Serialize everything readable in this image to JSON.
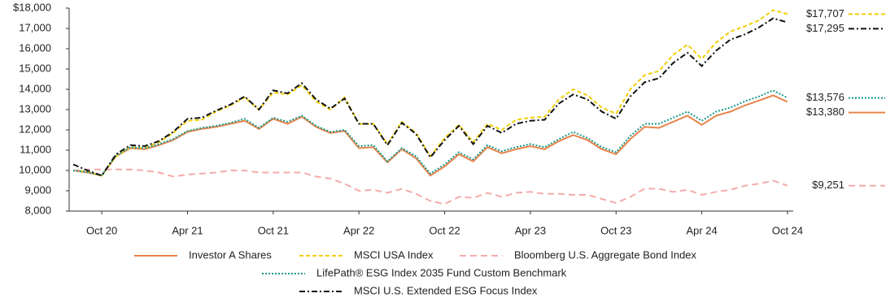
{
  "chart_data": {
    "type": "line",
    "categories": [
      null,
      null,
      "Oct 20",
      null,
      null,
      null,
      null,
      null,
      "Apr 21",
      null,
      null,
      null,
      null,
      null,
      "Oct 21",
      null,
      null,
      null,
      null,
      null,
      "Apr 22",
      null,
      null,
      null,
      null,
      null,
      "Oct 22",
      null,
      null,
      null,
      null,
      null,
      "Apr 23",
      null,
      null,
      null,
      null,
      null,
      "Oct 23",
      null,
      null,
      null,
      null,
      null,
      "Apr 24",
      null,
      null,
      null,
      null,
      null,
      "Oct 24"
    ],
    "ylim": [
      8000,
      18000
    ],
    "yticks": [
      {
        "value": 8000,
        "label": "8,000"
      },
      {
        "value": 9000,
        "label": "9,000"
      },
      {
        "value": 10000,
        "label": "10,000"
      },
      {
        "value": 11000,
        "label": "11,000"
      },
      {
        "value": 12000,
        "label": "12,000"
      },
      {
        "value": 13000,
        "label": "13,000"
      },
      {
        "value": 14000,
        "label": "14,000"
      },
      {
        "value": 15000,
        "label": "15,000"
      },
      {
        "value": 16000,
        "label": "16,000"
      },
      {
        "value": 17000,
        "label": "17,000"
      },
      {
        "value": 18000,
        "label": "$18,000"
      }
    ],
    "series": [
      {
        "name": "Investor A Shares",
        "color": "#e8834a",
        "style": "solid",
        "values": [
          10000,
          9900,
          9750,
          10700,
          11100,
          11050,
          11250,
          11500,
          11900,
          12050,
          12150,
          12300,
          12450,
          12050,
          12550,
          12300,
          12650,
          12150,
          11850,
          11950,
          11100,
          11150,
          10400,
          11050,
          10600,
          9750,
          10200,
          10800,
          10450,
          11150,
          10850,
          11050,
          11200,
          11050,
          11450,
          11750,
          11500,
          11050,
          10800,
          11550,
          12150,
          12100,
          12400,
          12700,
          12250,
          12700,
          12900,
          13200,
          13450,
          13700,
          13380
        ],
        "value_labels": [
          null,
          null,
          null,
          null,
          null,
          null,
          null,
          null,
          null,
          null,
          null,
          null,
          null,
          null,
          null,
          null,
          null,
          null,
          null,
          null,
          null,
          null,
          null,
          null,
          null,
          null,
          null,
          null,
          null,
          null,
          null,
          null,
          null,
          null,
          null,
          null,
          null,
          null,
          null,
          null,
          null,
          null,
          null,
          null,
          null,
          null,
          null,
          null,
          null,
          null,
          "$13,380"
        ]
      },
      {
        "name": "MSCI USA Index",
        "color": "#f2cf0a",
        "style": "dashed",
        "values": [
          10000,
          9950,
          9750,
          10700,
          11150,
          11100,
          11400,
          11850,
          12450,
          12500,
          12900,
          13200,
          13600,
          13000,
          13850,
          13750,
          14200,
          13400,
          13000,
          13600,
          12300,
          12300,
          11300,
          12400,
          11850,
          10700,
          11600,
          12250,
          11400,
          12300,
          12000,
          12500,
          12600,
          12650,
          13500,
          14000,
          13700,
          13100,
          12800,
          14000,
          14700,
          14900,
          15700,
          16200,
          15500,
          16300,
          16850,
          17100,
          17400,
          17900,
          17707
        ],
        "value_labels": [
          null,
          null,
          null,
          null,
          null,
          null,
          null,
          null,
          null,
          null,
          null,
          null,
          null,
          null,
          null,
          null,
          null,
          null,
          null,
          null,
          null,
          null,
          null,
          null,
          null,
          null,
          null,
          null,
          null,
          null,
          null,
          null,
          null,
          null,
          null,
          null,
          null,
          null,
          null,
          null,
          null,
          null,
          null,
          null,
          null,
          null,
          null,
          null,
          null,
          null,
          "$17,707"
        ]
      },
      {
        "name": "Bloomberg U.S. Aggregate Bond Index",
        "color": "#f4abab",
        "style": "longdash",
        "values": [
          10000,
          10050,
          10050,
          10050,
          10050,
          10000,
          9900,
          9700,
          9800,
          9850,
          9900,
          10000,
          10000,
          9900,
          9900,
          9900,
          9900,
          9700,
          9600,
          9350,
          9000,
          9050,
          8900,
          9100,
          8850,
          8500,
          8350,
          8700,
          8650,
          8900,
          8700,
          8900,
          8950,
          8850,
          8850,
          8800,
          8800,
          8600,
          8400,
          8700,
          9100,
          9100,
          8950,
          9050,
          8800,
          8950,
          9050,
          9250,
          9350,
          9500,
          9251
        ],
        "value_labels": [
          null,
          null,
          null,
          null,
          null,
          null,
          null,
          null,
          null,
          null,
          null,
          null,
          null,
          null,
          null,
          null,
          null,
          null,
          null,
          null,
          null,
          null,
          null,
          null,
          null,
          null,
          null,
          null,
          null,
          null,
          null,
          null,
          null,
          null,
          null,
          null,
          null,
          null,
          null,
          null,
          null,
          null,
          null,
          null,
          null,
          null,
          null,
          null,
          null,
          null,
          "$9,251"
        ]
      },
      {
        "name": "LifePath® ESG Index 2035 Fund Custom Benchmark",
        "color": "#1a9a8a",
        "style": "dotted",
        "values": [
          10000,
          9920,
          9760,
          10750,
          11150,
          11100,
          11300,
          11550,
          11950,
          12100,
          12200,
          12350,
          12550,
          12100,
          12600,
          12400,
          12700,
          12200,
          11900,
          12000,
          11200,
          11250,
          10450,
          11100,
          10700,
          9850,
          10300,
          10900,
          10550,
          11250,
          10950,
          11150,
          11300,
          11150,
          11550,
          11900,
          11600,
          11150,
          10900,
          11700,
          12300,
          12300,
          12600,
          12900,
          12450,
          12900,
          13100,
          13400,
          13650,
          13950,
          13576
        ],
        "value_labels": [
          null,
          null,
          null,
          null,
          null,
          null,
          null,
          null,
          null,
          null,
          null,
          null,
          null,
          null,
          null,
          null,
          null,
          null,
          null,
          null,
          null,
          null,
          null,
          null,
          null,
          null,
          null,
          null,
          null,
          null,
          null,
          null,
          null,
          null,
          null,
          null,
          null,
          null,
          null,
          null,
          null,
          null,
          null,
          null,
          null,
          null,
          null,
          null,
          null,
          null,
          "$13,576"
        ]
      },
      {
        "name": "MSCI U.S. Extended ESG Focus Index",
        "color": "#111111",
        "style": "dashdot",
        "values": [
          10300,
          10000,
          9750,
          10800,
          11250,
          11200,
          11450,
          11900,
          12550,
          12600,
          12950,
          13250,
          13650,
          13000,
          13950,
          13800,
          14300,
          13500,
          13050,
          13550,
          12300,
          12300,
          11250,
          12350,
          11800,
          10650,
          11500,
          12200,
          11300,
          12200,
          11850,
          12300,
          12450,
          12500,
          13300,
          13750,
          13500,
          12900,
          12550,
          13650,
          14350,
          14550,
          15300,
          15800,
          15150,
          15900,
          16450,
          16700,
          17050,
          17500,
          17295
        ],
        "value_labels": [
          null,
          null,
          null,
          null,
          null,
          null,
          null,
          null,
          null,
          null,
          null,
          null,
          null,
          null,
          null,
          null,
          null,
          null,
          null,
          null,
          null,
          null,
          null,
          null,
          null,
          null,
          null,
          null,
          null,
          null,
          null,
          null,
          null,
          null,
          null,
          null,
          null,
          null,
          null,
          null,
          null,
          null,
          null,
          null,
          null,
          null,
          null,
          null,
          null,
          null,
          "$17,295"
        ]
      }
    ]
  }
}
